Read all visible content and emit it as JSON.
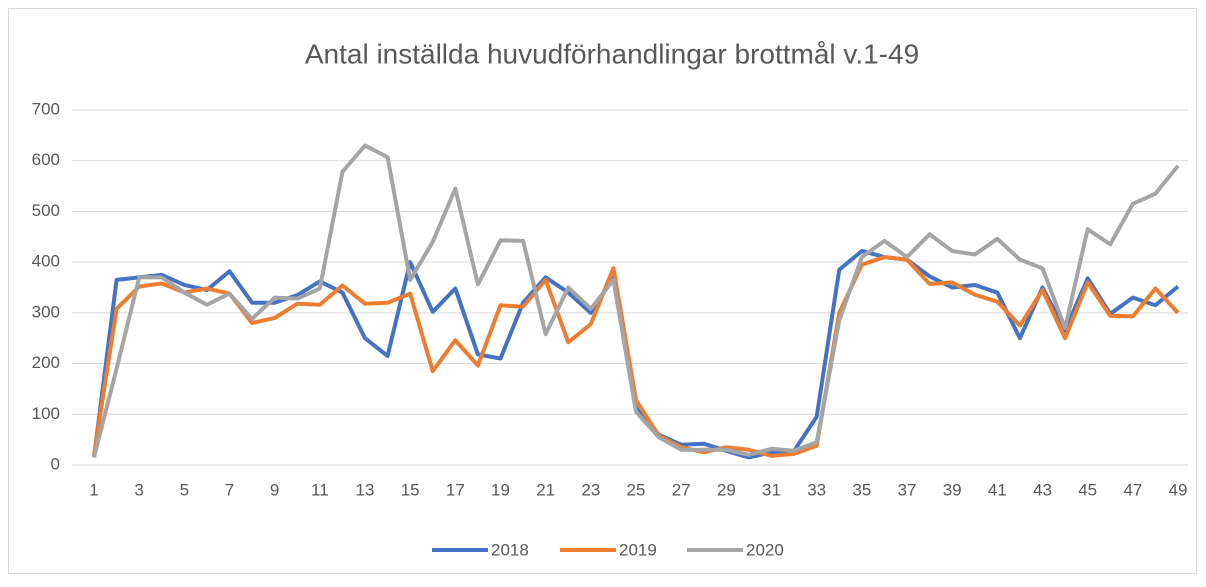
{
  "chart_data": {
    "type": "line",
    "title": "Antal inställda huvudförhandlingar brottmål v.1-49",
    "x": [
      1,
      2,
      3,
      4,
      5,
      6,
      7,
      8,
      9,
      10,
      11,
      12,
      13,
      14,
      15,
      16,
      17,
      18,
      19,
      20,
      21,
      22,
      23,
      24,
      25,
      26,
      27,
      28,
      29,
      30,
      31,
      32,
      33,
      34,
      35,
      36,
      37,
      38,
      39,
      40,
      41,
      42,
      43,
      44,
      45,
      46,
      47,
      48,
      49
    ],
    "xlim": [
      1,
      49
    ],
    "xticks": [
      1,
      3,
      5,
      7,
      9,
      11,
      13,
      15,
      17,
      19,
      21,
      23,
      25,
      27,
      29,
      31,
      33,
      35,
      37,
      39,
      41,
      43,
      45,
      47,
      49
    ],
    "ylim": [
      0,
      700
    ],
    "yticks": [
      0,
      100,
      200,
      300,
      400,
      500,
      600,
      700
    ],
    "grid": true,
    "legend": "bottom",
    "series": [
      {
        "name": "2018",
        "color": "#4472c4",
        "values": [
          15,
          365,
          370,
          375,
          355,
          345,
          382,
          320,
          320,
          335,
          362,
          340,
          250,
          215,
          400,
          302,
          348,
          218,
          210,
          320,
          370,
          340,
          300,
          370,
          115,
          60,
          40,
          42,
          28,
          15,
          25,
          28,
          95,
          385,
          422,
          410,
          405,
          372,
          350,
          355,
          340,
          250,
          350,
          265,
          368,
          298,
          330,
          315,
          352
        ]
      },
      {
        "name": "2019",
        "color": "#ed7d31",
        "values": [
          20,
          308,
          352,
          358,
          340,
          348,
          338,
          280,
          290,
          318,
          316,
          354,
          318,
          320,
          338,
          185,
          246,
          196,
          315,
          312,
          365,
          242,
          278,
          388,
          128,
          58,
          35,
          25,
          35,
          30,
          18,
          22,
          38,
          300,
          395,
          410,
          405,
          357,
          360,
          336,
          322,
          275,
          345,
          250,
          360,
          294,
          293,
          348,
          300
        ]
      },
      {
        "name": "2020",
        "color": "#a5a5a5",
        "values": [
          15,
          190,
          370,
          370,
          340,
          316,
          338,
          288,
          330,
          328,
          348,
          578,
          630,
          607,
          365,
          440,
          545,
          356,
          443,
          442,
          258,
          350,
          308,
          365,
          105,
          55,
          30,
          30,
          30,
          20,
          32,
          28,
          45,
          285,
          410,
          442,
          410,
          455,
          422,
          415,
          446,
          405,
          388,
          270,
          465,
          435,
          515,
          535,
          590
        ]
      }
    ]
  }
}
